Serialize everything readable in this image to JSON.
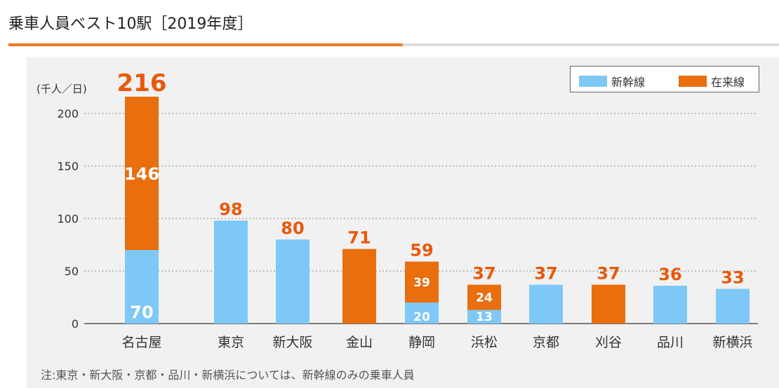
{
  "title": "乗車人員ベスト10駅［2019年度］",
  "note": "注:東京・新大阪・京都・品川・新横浜については、新幹線のみの乗車人員",
  "colors": {
    "shinkansen": "#7ec8f8",
    "zairaisen": "#e86e0e",
    "total_label": "#e8590c",
    "accent_rule": "#ee7a24"
  },
  "chart_data": {
    "type": "bar",
    "stacked": true,
    "ylabel": "(千人／日)",
    "ylim": [
      0,
      216
    ],
    "yticks": [
      0,
      50,
      100,
      150,
      200
    ],
    "grid": true,
    "legend_position": "top-right",
    "categories": [
      "名古屋",
      "東京",
      "新大阪",
      "金山",
      "静岡",
      "浜松",
      "京都",
      "刈谷",
      "品川",
      "新横浜"
    ],
    "series": [
      {
        "name": "新幹線",
        "values": [
          70,
          98,
          80,
          0,
          20,
          13,
          37,
          0,
          36,
          33
        ],
        "labels": [
          "70",
          "",
          "",
          "",
          "20",
          "13",
          "",
          "",
          "",
          ""
        ]
      },
      {
        "name": "在来線",
        "values": [
          146,
          0,
          0,
          71,
          39,
          24,
          0,
          37,
          0,
          0
        ],
        "labels": [
          "146",
          "",
          "",
          "",
          "39",
          "24",
          "",
          "",
          "",
          ""
        ]
      }
    ],
    "totals": [
      "216",
      "98",
      "80",
      "71",
      "59",
      "37",
      "37",
      "37",
      "36",
      "33"
    ]
  }
}
